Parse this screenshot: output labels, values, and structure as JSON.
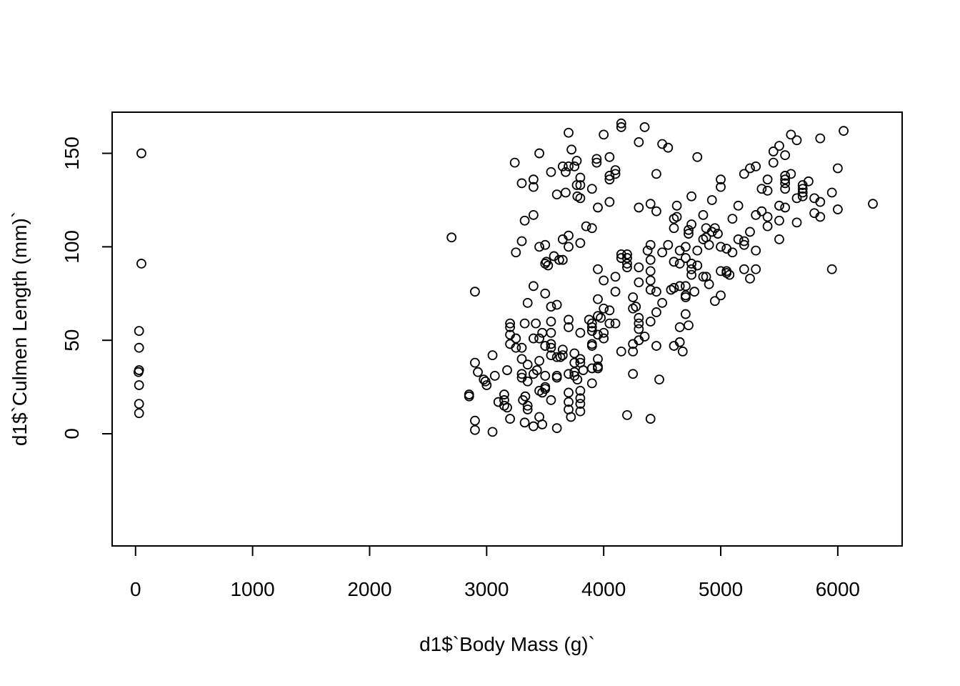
{
  "chart_data": {
    "type": "scatter",
    "title": "",
    "xlabel": "d1$`Body Mass (g)`",
    "ylabel": "d1$`Culmen Length (mm)`",
    "xlim": [
      -200,
      6550
    ],
    "ylim": [
      -60,
      172
    ],
    "x_ticks": [
      0,
      1000,
      2000,
      3000,
      4000,
      5000,
      6000
    ],
    "y_ticks": [
      0,
      50,
      100,
      150
    ],
    "grid": false,
    "legend": "none",
    "marker": "open-circle",
    "point_color": "#000000",
    "points": [
      [
        50,
        150
      ],
      [
        50,
        91
      ],
      [
        30,
        55
      ],
      [
        30,
        46
      ],
      [
        30,
        34
      ],
      [
        25,
        33
      ],
      [
        30,
        26
      ],
      [
        30,
        16
      ],
      [
        30,
        11
      ],
      [
        2700,
        105
      ],
      [
        2850,
        21
      ],
      [
        2850,
        20
      ],
      [
        2900,
        76
      ],
      [
        2900,
        38
      ],
      [
        2900,
        7
      ],
      [
        2900,
        2
      ],
      [
        2925,
        33
      ],
      [
        2975,
        29
      ],
      [
        2990,
        28
      ],
      [
        3000,
        26
      ],
      [
        3050,
        42
      ],
      [
        3050,
        1
      ],
      [
        3070,
        31
      ],
      [
        3100,
        17
      ],
      [
        3150,
        21
      ],
      [
        3150,
        18
      ],
      [
        3150,
        15
      ],
      [
        3175,
        34
      ],
      [
        3175,
        14
      ],
      [
        3200,
        59
      ],
      [
        3200,
        57
      ],
      [
        3200,
        53
      ],
      [
        3200,
        48
      ],
      [
        3200,
        8
      ],
      [
        3240,
        145
      ],
      [
        3250,
        97
      ],
      [
        3250,
        51
      ],
      [
        3250,
        46
      ],
      [
        3300,
        134
      ],
      [
        3300,
        103
      ],
      [
        3300,
        46
      ],
      [
        3300,
        40
      ],
      [
        3300,
        32
      ],
      [
        3300,
        30
      ],
      [
        3310,
        18
      ],
      [
        3325,
        114
      ],
      [
        3325,
        59
      ],
      [
        3325,
        6
      ],
      [
        3330,
        20
      ],
      [
        3350,
        70
      ],
      [
        3350,
        37
      ],
      [
        3350,
        28
      ],
      [
        3350,
        15
      ],
      [
        3350,
        13
      ],
      [
        3400,
        136
      ],
      [
        3400,
        132
      ],
      [
        3400,
        117
      ],
      [
        3400,
        79
      ],
      [
        3400,
        51
      ],
      [
        3400,
        32
      ],
      [
        3400,
        4
      ],
      [
        3420,
        59
      ],
      [
        3430,
        34
      ],
      [
        3450,
        150
      ],
      [
        3450,
        100
      ],
      [
        3450,
        51
      ],
      [
        3450,
        39
      ],
      [
        3450,
        23
      ],
      [
        3450,
        9
      ],
      [
        3475,
        54
      ],
      [
        3475,
        22
      ],
      [
        3475,
        5
      ],
      [
        3500,
        101
      ],
      [
        3500,
        91
      ],
      [
        3500,
        75
      ],
      [
        3500,
        47
      ],
      [
        3500,
        31
      ],
      [
        3500,
        25
      ],
      [
        3500,
        24
      ],
      [
        3510,
        92
      ],
      [
        3525,
        90
      ],
      [
        3550,
        140
      ],
      [
        3550,
        68
      ],
      [
        3550,
        60
      ],
      [
        3550,
        54
      ],
      [
        3550,
        48
      ],
      [
        3550,
        46
      ],
      [
        3550,
        42
      ],
      [
        3550,
        18
      ],
      [
        3575,
        95
      ],
      [
        3600,
        128
      ],
      [
        3600,
        69
      ],
      [
        3600,
        41
      ],
      [
        3600,
        31
      ],
      [
        3600,
        30
      ],
      [
        3600,
        3
      ],
      [
        3620,
        93
      ],
      [
        3630,
        41
      ],
      [
        3650,
        143
      ],
      [
        3650,
        104
      ],
      [
        3650,
        93
      ],
      [
        3650,
        45
      ],
      [
        3650,
        42
      ],
      [
        3675,
        140
      ],
      [
        3675,
        129
      ],
      [
        3700,
        161
      ],
      [
        3700,
        143
      ],
      [
        3700,
        106
      ],
      [
        3700,
        100
      ],
      [
        3700,
        61
      ],
      [
        3700,
        57
      ],
      [
        3700,
        32
      ],
      [
        3700,
        22
      ],
      [
        3700,
        17
      ],
      [
        3700,
        13
      ],
      [
        3720,
        9
      ],
      [
        3725,
        152
      ],
      [
        3750,
        143
      ],
      [
        3750,
        43
      ],
      [
        3750,
        38
      ],
      [
        3750,
        33
      ],
      [
        3750,
        31
      ],
      [
        3770,
        146
      ],
      [
        3770,
        133
      ],
      [
        3775,
        127
      ],
      [
        3775,
        29
      ],
      [
        3800,
        137
      ],
      [
        3800,
        133
      ],
      [
        3800,
        126
      ],
      [
        3800,
        102
      ],
      [
        3800,
        54
      ],
      [
        3800,
        40
      ],
      [
        3800,
        38
      ],
      [
        3800,
        23
      ],
      [
        3800,
        19
      ],
      [
        3800,
        16
      ],
      [
        3800,
        12
      ],
      [
        3825,
        34
      ],
      [
        3850,
        111
      ],
      [
        3875,
        61
      ],
      [
        3900,
        131
      ],
      [
        3900,
        110
      ],
      [
        3900,
        59
      ],
      [
        3900,
        57
      ],
      [
        3900,
        55
      ],
      [
        3900,
        48
      ],
      [
        3900,
        47
      ],
      [
        3900,
        35
      ],
      [
        3900,
        27
      ],
      [
        3940,
        147
      ],
      [
        3940,
        145
      ],
      [
        3950,
        121
      ],
      [
        3950,
        88
      ],
      [
        3950,
        72
      ],
      [
        3950,
        63
      ],
      [
        3950,
        53
      ],
      [
        3950,
        40
      ],
      [
        3950,
        36
      ],
      [
        3950,
        35
      ],
      [
        3975,
        62
      ],
      [
        4000,
        160
      ],
      [
        4000,
        82
      ],
      [
        4000,
        67
      ],
      [
        4000,
        54
      ],
      [
        4000,
        51
      ],
      [
        4050,
        148
      ],
      [
        4050,
        138
      ],
      [
        4050,
        136
      ],
      [
        4050,
        124
      ],
      [
        4050,
        66
      ],
      [
        4050,
        59
      ],
      [
        4100,
        141
      ],
      [
        4100,
        139
      ],
      [
        4100,
        84
      ],
      [
        4100,
        76
      ],
      [
        4100,
        59
      ],
      [
        4150,
        166
      ],
      [
        4150,
        164
      ],
      [
        4150,
        96
      ],
      [
        4150,
        94
      ],
      [
        4150,
        44
      ],
      [
        4200,
        96
      ],
      [
        4200,
        94
      ],
      [
        4200,
        91
      ],
      [
        4200,
        89
      ],
      [
        4200,
        10
      ],
      [
        4250,
        73
      ],
      [
        4250,
        67
      ],
      [
        4250,
        48
      ],
      [
        4250,
        44
      ],
      [
        4250,
        32
      ],
      [
        4275,
        68
      ],
      [
        4300,
        156
      ],
      [
        4300,
        121
      ],
      [
        4300,
        89
      ],
      [
        4300,
        81
      ],
      [
        4300,
        62
      ],
      [
        4300,
        59
      ],
      [
        4300,
        56
      ],
      [
        4300,
        50
      ],
      [
        4350,
        164
      ],
      [
        4350,
        52
      ],
      [
        4375,
        98
      ],
      [
        4400,
        123
      ],
      [
        4400,
        101
      ],
      [
        4400,
        93
      ],
      [
        4400,
        87
      ],
      [
        4400,
        82
      ],
      [
        4400,
        77
      ],
      [
        4400,
        60
      ],
      [
        4400,
        8
      ],
      [
        4450,
        139
      ],
      [
        4450,
        119
      ],
      [
        4450,
        76
      ],
      [
        4450,
        65
      ],
      [
        4450,
        47
      ],
      [
        4475,
        29
      ],
      [
        4500,
        155
      ],
      [
        4500,
        97
      ],
      [
        4500,
        70
      ],
      [
        4550,
        153
      ],
      [
        4550,
        101
      ],
      [
        4575,
        77
      ],
      [
        4600,
        115
      ],
      [
        4600,
        110
      ],
      [
        4600,
        92
      ],
      [
        4600,
        78
      ],
      [
        4600,
        47
      ],
      [
        4625,
        122
      ],
      [
        4625,
        116
      ],
      [
        4650,
        98
      ],
      [
        4650,
        91
      ],
      [
        4650,
        79
      ],
      [
        4650,
        57
      ],
      [
        4650,
        49
      ],
      [
        4675,
        44
      ],
      [
        4700,
        100
      ],
      [
        4700,
        94
      ],
      [
        4700,
        79
      ],
      [
        4700,
        74
      ],
      [
        4700,
        73
      ],
      [
        4700,
        64
      ],
      [
        4725,
        109
      ],
      [
        4725,
        107
      ],
      [
        4725,
        58
      ],
      [
        4750,
        127
      ],
      [
        4750,
        112
      ],
      [
        4750,
        91
      ],
      [
        4750,
        88
      ],
      [
        4750,
        85
      ],
      [
        4775,
        76
      ],
      [
        4800,
        148
      ],
      [
        4800,
        98
      ],
      [
        4800,
        90
      ],
      [
        4850,
        117
      ],
      [
        4850,
        104
      ],
      [
        4850,
        84
      ],
      [
        4875,
        110
      ],
      [
        4875,
        105
      ],
      [
        4875,
        84
      ],
      [
        4900,
        101
      ],
      [
        4900,
        80
      ],
      [
        4925,
        125
      ],
      [
        4925,
        108
      ],
      [
        4950,
        110
      ],
      [
        4950,
        71
      ],
      [
        4975,
        107
      ],
      [
        5000,
        136
      ],
      [
        5000,
        132
      ],
      [
        5000,
        100
      ],
      [
        5000,
        87
      ],
      [
        5000,
        74
      ],
      [
        5050,
        99
      ],
      [
        5050,
        87
      ],
      [
        5050,
        86
      ],
      [
        5075,
        85
      ],
      [
        5100,
        115
      ],
      [
        5100,
        97
      ],
      [
        5150,
        122
      ],
      [
        5150,
        104
      ],
      [
        5200,
        139
      ],
      [
        5200,
        103
      ],
      [
        5200,
        101
      ],
      [
        5200,
        88
      ],
      [
        5250,
        142
      ],
      [
        5250,
        108
      ],
      [
        5250,
        83
      ],
      [
        5300,
        143
      ],
      [
        5300,
        117
      ],
      [
        5300,
        98
      ],
      [
        5300,
        88
      ],
      [
        5350,
        131
      ],
      [
        5350,
        119
      ],
      [
        5400,
        136
      ],
      [
        5400,
        130
      ],
      [
        5400,
        116
      ],
      [
        5400,
        111
      ],
      [
        5450,
        151
      ],
      [
        5450,
        145
      ],
      [
        5500,
        154
      ],
      [
        5500,
        122
      ],
      [
        5500,
        114
      ],
      [
        5500,
        104
      ],
      [
        5550,
        149
      ],
      [
        5550,
        138
      ],
      [
        5550,
        136
      ],
      [
        5550,
        134
      ],
      [
        5550,
        131
      ],
      [
        5550,
        121
      ],
      [
        5600,
        160
      ],
      [
        5600,
        139
      ],
      [
        5650,
        157
      ],
      [
        5650,
        126
      ],
      [
        5650,
        113
      ],
      [
        5700,
        133
      ],
      [
        5700,
        131
      ],
      [
        5700,
        129
      ],
      [
        5700,
        127
      ],
      [
        5750,
        135
      ],
      [
        5800,
        126
      ],
      [
        5800,
        118
      ],
      [
        5850,
        158
      ],
      [
        5850,
        124
      ],
      [
        5850,
        116
      ],
      [
        5950,
        129
      ],
      [
        5950,
        88
      ],
      [
        6000,
        142
      ],
      [
        6000,
        120
      ],
      [
        6050,
        162
      ],
      [
        6300,
        123
      ]
    ]
  }
}
